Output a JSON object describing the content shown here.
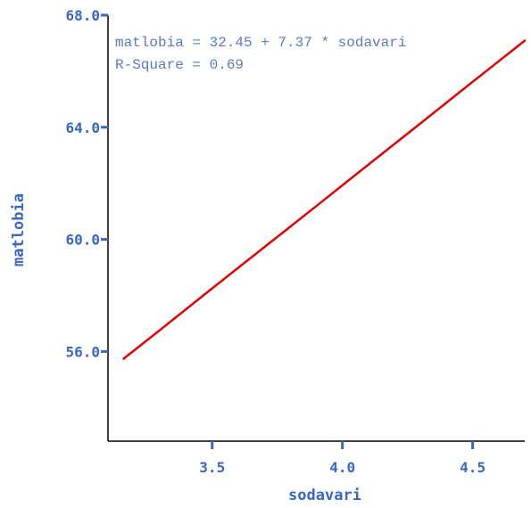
{
  "chart_data": {
    "type": "line",
    "title": "",
    "xlabel": "sodavari",
    "ylabel": "matlobia",
    "xlim": [
      3.1,
      4.7
    ],
    "ylim": [
      52.8,
      68.0
    ],
    "x_ticks": [
      {
        "value": 3.5,
        "label": "3.5"
      },
      {
        "value": 4.0,
        "label": "4.0"
      },
      {
        "value": 4.5,
        "label": "4.5"
      }
    ],
    "y_ticks": [
      {
        "value": 56.0,
        "label": "56.0"
      },
      {
        "value": 60.0,
        "label": "60.0"
      },
      {
        "value": 64.0,
        "label": "64.0"
      },
      {
        "value": 68.0,
        "label": "68.0"
      }
    ],
    "grid": false,
    "series": [
      {
        "x": [
          3.16,
          3.3,
          3.5,
          3.7,
          3.9,
          4.0,
          4.1,
          4.3,
          4.5,
          4.7
        ],
        "y": [
          55.74,
          56.77,
          58.25,
          59.72,
          61.19,
          61.93,
          62.67,
          64.14,
          65.62,
          67.09
        ]
      }
    ],
    "annotations": [
      {
        "id": "equation",
        "text": "matlobia = 32.45 + 7.37 * sodavari"
      },
      {
        "id": "rsquare",
        "text": "R-Square = 0.69"
      }
    ]
  },
  "colors": {
    "axis": "#000000",
    "tick": "#3a66c4",
    "label": "#3a66c4",
    "annotation": "#5b79c2",
    "line": "#e00000"
  }
}
